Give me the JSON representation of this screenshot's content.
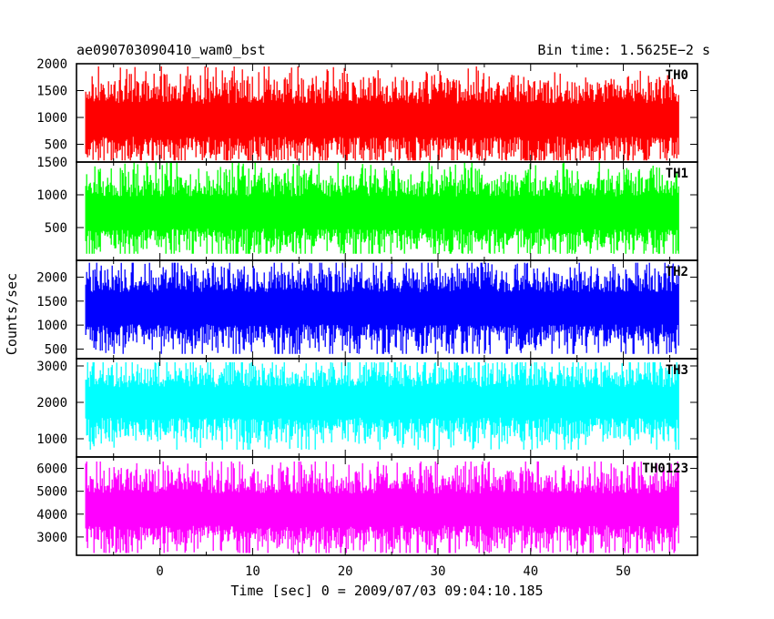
{
  "chart_data": {
    "type": "line",
    "title": "ae090703090410_wam0_bst",
    "subtitle": "Bin time: 1.5625E−2 s",
    "xlabel": "Time [sec] 0 = 2009/07/03 09:04:10.185",
    "ylabel": "Counts/sec",
    "xlim": [
      -9,
      58
    ],
    "data_x_range": [
      -8,
      56
    ],
    "x_ticks": [
      0,
      10,
      20,
      30,
      40,
      50
    ],
    "panels": [
      {
        "name": "TH0",
        "color": "#ff0000",
        "ylim": [
          170,
          2000
        ],
        "y_ticks": [
          500,
          1000,
          1500,
          2000
        ],
        "mean": 950,
        "min": 200,
        "max": 1950
      },
      {
        "name": "TH1",
        "color": "#00ff00",
        "ylim": [
          0,
          1500
        ],
        "y_ticks": [
          500,
          1000,
          1500
        ],
        "mean": 730,
        "min": 100,
        "max": 1500
      },
      {
        "name": "TH2",
        "color": "#0000ff",
        "ylim": [
          300,
          2350
        ],
        "y_ticks": [
          500,
          1000,
          1500,
          2000
        ],
        "mean": 1350,
        "min": 400,
        "max": 2300
      },
      {
        "name": "TH3",
        "color": "#00ffff",
        "ylim": [
          500,
          3200
        ],
        "y_ticks": [
          1000,
          2000,
          3000
        ],
        "mean": 2000,
        "min": 700,
        "max": 3100
      },
      {
        "name": "TH0123",
        "color": "#ff00ff",
        "ylim": [
          2200,
          6500
        ],
        "y_ticks": [
          3000,
          4000,
          5000,
          6000
        ],
        "mean": 4200,
        "min": 2300,
        "max": 6300
      }
    ]
  }
}
